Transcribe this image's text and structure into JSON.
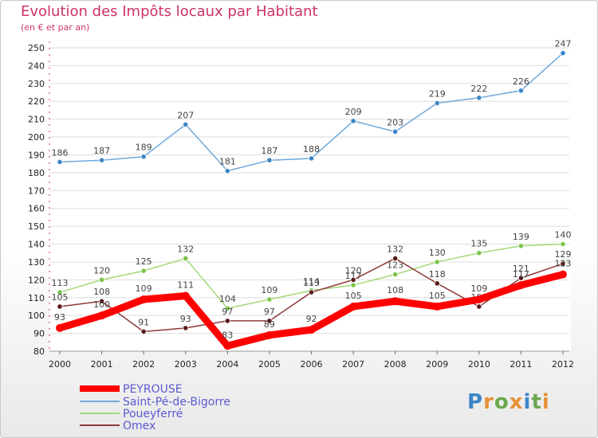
{
  "chart_data": {
    "type": "line",
    "title": "Evolution des Impôts locaux par Habitant",
    "subtitle": "(en € et par an)",
    "x": [
      "2000",
      "2001",
      "2002",
      "2003",
      "2004",
      "2005",
      "2006",
      "2007",
      "2008",
      "2009",
      "2010",
      "2011",
      "2012"
    ],
    "yticks": [
      80,
      90,
      100,
      110,
      120,
      130,
      140,
      150,
      160,
      170,
      180,
      190,
      200,
      210,
      220,
      230,
      240,
      250
    ],
    "ylim": [
      80,
      250
    ],
    "legend_position": "bottom-left",
    "series": [
      {
        "name": "PEYROUSE",
        "color": "#ff0000",
        "values": [
          93,
          100,
          109,
          111,
          83,
          89,
          92,
          105,
          108,
          105,
          109,
          117,
          123
        ]
      },
      {
        "name": "Saint-Pé-de-Bigorre",
        "color": "#6fa8dc",
        "marker": "#3d85c6",
        "values": [
          186,
          187,
          189,
          207,
          181,
          187,
          188,
          209,
          203,
          219,
          222,
          226,
          247
        ]
      },
      {
        "name": "Poueyferré",
        "color": "#a3d977",
        "marker": "#7cc24b",
        "values": [
          113,
          120,
          125,
          132,
          104,
          109,
          114,
          117,
          123,
          130,
          135,
          139,
          140
        ]
      },
      {
        "name": "Omex",
        "color": "#8e3a3a",
        "marker": "#5b1a1a",
        "values": [
          105,
          108,
          91,
          93,
          97,
          97,
          113,
          120,
          132,
          118,
          105,
          121,
          129
        ]
      }
    ]
  },
  "logo": {
    "letters": [
      "P",
      "r",
      "o",
      "x",
      "i",
      "t",
      "i"
    ],
    "colors": [
      "#3d85c6",
      "#e69138",
      "#6aa84f",
      "#e69138",
      "#3d85c6",
      "#6aa84f",
      "#e69138"
    ]
  }
}
